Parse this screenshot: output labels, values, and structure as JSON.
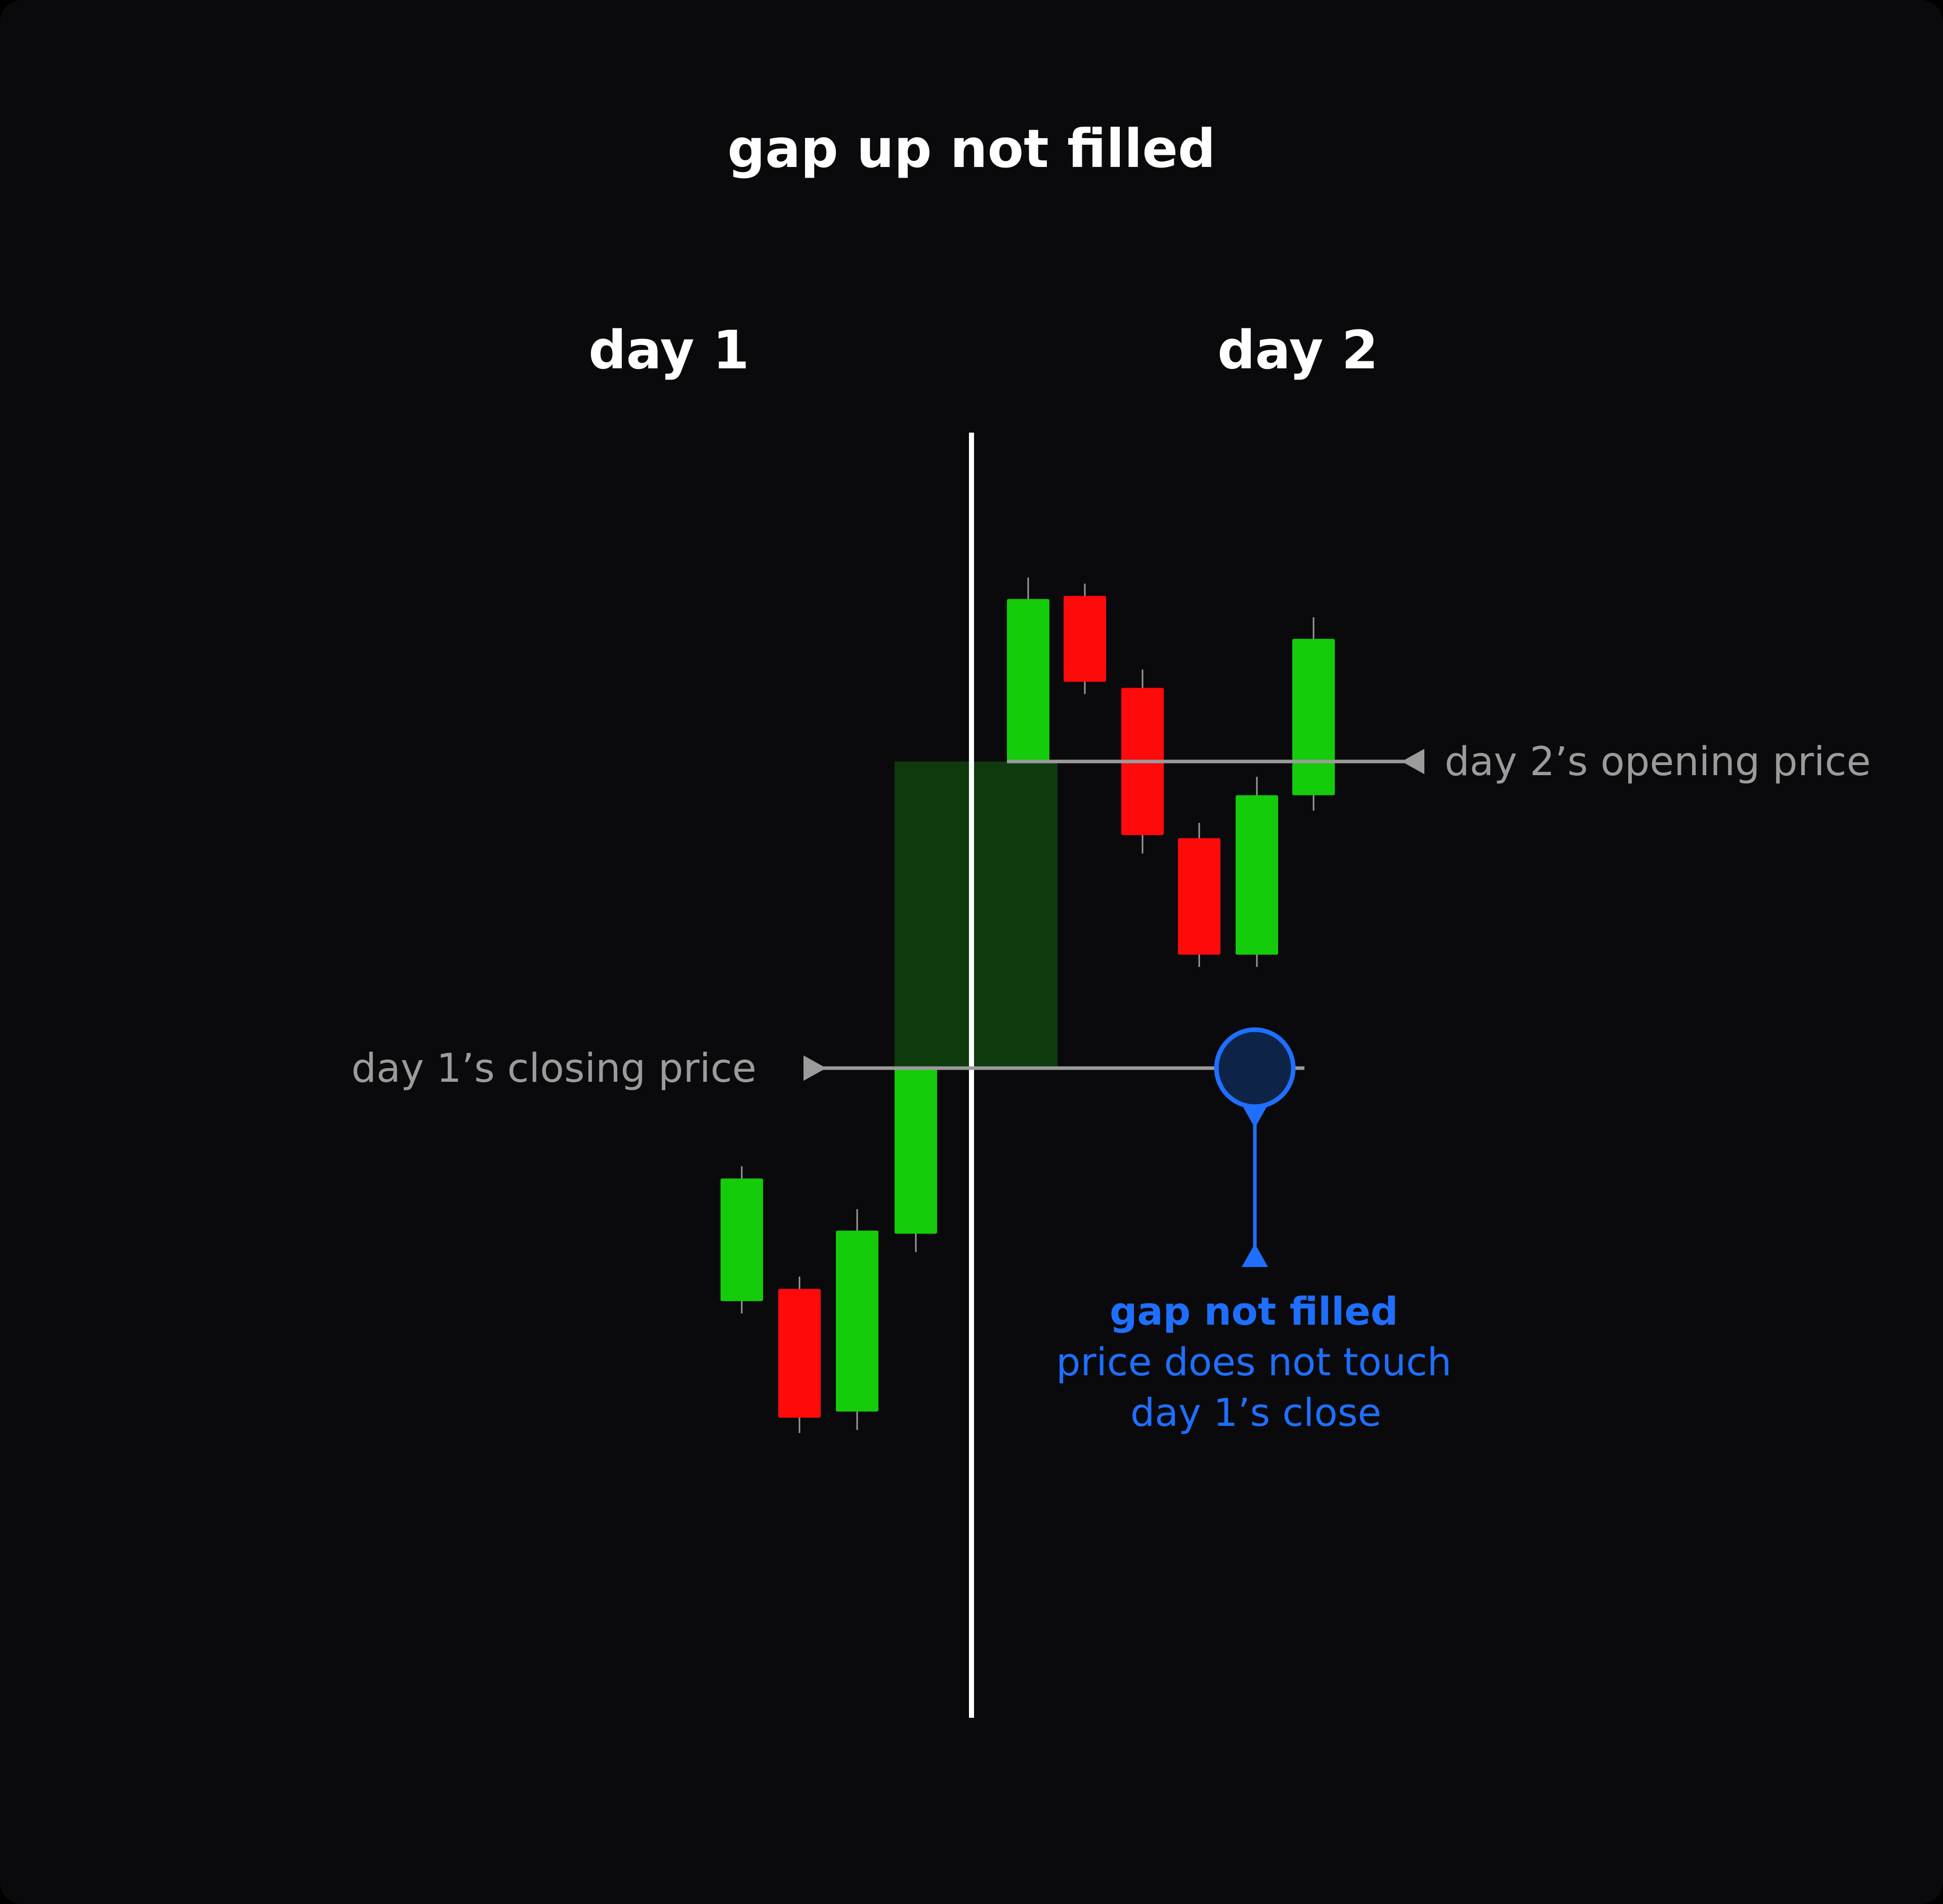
{
  "title": "gap up not filled",
  "day_labels": [
    "day 1",
    "day 2"
  ],
  "annotations": {
    "day1_close": "day 1’s closing price",
    "day2_open": "day 2’s opening price",
    "gap_note_title": "gap not filled",
    "gap_note_line1": "price does not touch",
    "gap_note_line2": "day 1’s close"
  },
  "colors": {
    "background": "#0a0a0d",
    "bullish": "#14cc0a",
    "bearish": "#ff0a0a",
    "gap_zone": "#0e3a0e",
    "reference_line": "#9b9b9b",
    "divider": "#ffffff",
    "highlight": "#1f6fff"
  },
  "chart_data": {
    "type": "candlestick",
    "levels": {
      "day1_close": 0,
      "day2_open": 100
    },
    "candles": [
      {
        "day": "day 1",
        "direction": "up",
        "open": -76,
        "close": -36,
        "high": -32,
        "low": -80
      },
      {
        "day": "day 1",
        "direction": "down",
        "open": -72,
        "close": -114,
        "high": -68,
        "low": -119
      },
      {
        "day": "day 1",
        "direction": "up",
        "open": -112,
        "close": -53,
        "high": -46,
        "low": -118
      },
      {
        "day": "day 1",
        "direction": "up",
        "open": -54,
        "close": 0,
        "high": 0,
        "low": -60
      },
      {
        "day": "day 2",
        "direction": "up",
        "open": 100,
        "close": 153,
        "high": 160,
        "low": 100
      },
      {
        "day": "day 2",
        "direction": "down",
        "open": 154,
        "close": 126,
        "high": 158,
        "low": 122
      },
      {
        "day": "day 2",
        "direction": "down",
        "open": 124,
        "close": 76,
        "high": 130,
        "low": 70
      },
      {
        "day": "day 2",
        "direction": "down",
        "open": 75,
        "close": 37,
        "high": 80,
        "low": 33
      },
      {
        "day": "day 2",
        "direction": "up",
        "open": 37,
        "close": 89,
        "high": 95,
        "low": 33
      },
      {
        "day": "day 2",
        "direction": "up",
        "open": 89,
        "close": 140,
        "high": 147,
        "low": 84
      }
    ],
    "gap_zone": {
      "from": 0,
      "to": 100
    }
  }
}
